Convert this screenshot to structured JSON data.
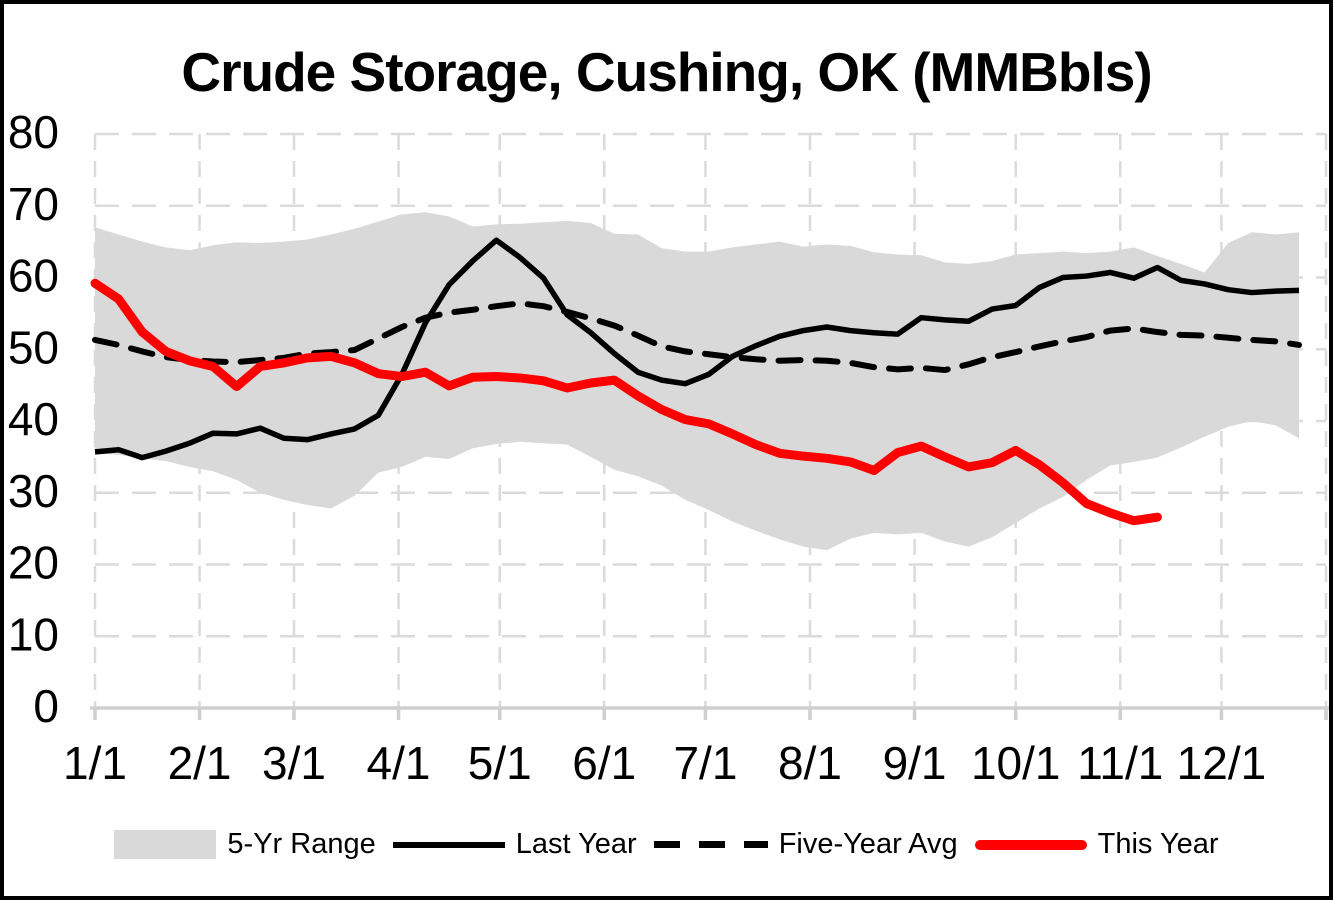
{
  "title": "Crude Storage, Cushing, OK (MMBbls)",
  "legend": [
    {
      "label": "5-Yr Range",
      "swatch": "band",
      "color": "#D9D9D9"
    },
    {
      "label": "Last Year",
      "swatch": "solid",
      "color": "#000000"
    },
    {
      "label": "Five-Year Avg",
      "swatch": "dashed",
      "color": "#000000"
    },
    {
      "label": "This Year",
      "swatch": "thick",
      "color": "#FF0000"
    }
  ],
  "chart_data": {
    "type": "line",
    "title": "Crude Storage, Cushing, OK (MMBbls)",
    "xlabel": "",
    "ylabel": "",
    "x_unit": "weekly points starting Jan 1",
    "week_interval_days": 7,
    "days_in_year": 365,
    "x_tick_labels": [
      "1/1",
      "2/1",
      "3/1",
      "4/1",
      "5/1",
      "6/1",
      "7/1",
      "8/1",
      "9/1",
      "10/1",
      "11/1",
      "12/1"
    ],
    "month_start_days": [
      0,
      31,
      59,
      90,
      120,
      151,
      181,
      212,
      243,
      273,
      304,
      334
    ],
    "y_ticks": [
      0,
      10,
      20,
      30,
      40,
      50,
      60,
      70,
      80
    ],
    "ylim": [
      0,
      80
    ],
    "grid": "dashed",
    "legend_position": "bottom",
    "band": {
      "name": "5-Yr Range",
      "color": "#D9D9D9",
      "max": [
        67.0,
        66.0,
        65.0,
        64.2,
        63.8,
        64.5,
        64.9,
        64.8,
        65.0,
        65.3,
        66.0,
        66.8,
        67.8,
        68.8,
        69.1,
        68.5,
        67.1,
        67.4,
        67.5,
        67.7,
        67.9,
        67.6,
        66.1,
        66.0,
        64.1,
        63.6,
        63.6,
        64.2,
        64.6,
        65.0,
        64.3,
        64.6,
        64.4,
        63.5,
        63.2,
        63.1,
        62.1,
        61.9,
        62.3,
        63.2,
        63.4,
        63.6,
        63.4,
        63.6,
        64.2,
        63.0,
        61.9,
        60.7,
        64.8,
        66.3,
        66.0,
        66.3
      ],
      "min": [
        35.5,
        35.3,
        34.8,
        34.4,
        33.6,
        33.0,
        31.8,
        30.0,
        29.0,
        28.3,
        27.8,
        29.6,
        32.8,
        33.6,
        35.0,
        34.7,
        36.2,
        36.8,
        37.1,
        36.9,
        36.7,
        35.0,
        33.2,
        32.3,
        31.0,
        29.0,
        27.6,
        26.0,
        24.7,
        23.5,
        22.5,
        22.0,
        23.6,
        24.4,
        24.2,
        24.4,
        23.2,
        22.5,
        23.8,
        25.8,
        27.8,
        29.4,
        31.8,
        33.8,
        34.3,
        34.9,
        36.3,
        37.8,
        39.2,
        40.0,
        39.4,
        37.6
      ]
    },
    "series": [
      {
        "name": "Last Year",
        "style": "solid",
        "color": "#000000",
        "values": [
          35.7,
          36.0,
          34.9,
          35.8,
          36.9,
          38.3,
          38.2,
          39.0,
          37.6,
          37.4,
          38.2,
          38.9,
          40.8,
          46.5,
          53.7,
          59.0,
          62.3,
          65.2,
          62.8,
          59.9,
          54.8,
          52.3,
          49.4,
          46.8,
          45.7,
          45.2,
          46.5,
          49.0,
          50.5,
          51.8,
          52.6,
          53.1,
          52.6,
          52.3,
          52.1,
          54.4,
          54.1,
          53.9,
          55.6,
          56.1,
          58.6,
          60.0,
          60.2,
          60.7,
          59.9,
          61.4,
          59.6,
          59.1,
          58.3,
          57.9,
          58.1,
          58.2
        ]
      },
      {
        "name": "Five-Year Avg",
        "style": "dashed",
        "color": "#000000",
        "values": [
          51.3,
          50.6,
          49.7,
          48.9,
          48.5,
          48.3,
          48.2,
          48.5,
          48.8,
          49.4,
          49.6,
          49.9,
          51.5,
          53.1,
          54.4,
          55.1,
          55.5,
          56.0,
          56.4,
          56.0,
          55.2,
          54.3,
          53.3,
          51.9,
          50.4,
          49.7,
          49.3,
          48.9,
          48.6,
          48.4,
          48.5,
          48.4,
          48.1,
          47.5,
          47.2,
          47.4,
          47.1,
          47.9,
          48.9,
          49.6,
          50.4,
          51.1,
          51.7,
          52.6,
          52.9,
          52.4,
          52.0,
          51.9,
          51.6,
          51.3,
          51.1,
          50.6
        ]
      },
      {
        "name": "This Year",
        "style": "solid-thick",
        "color": "#FF0000",
        "values": [
          59.2,
          57.0,
          52.4,
          49.7,
          48.4,
          47.6,
          44.8,
          47.6,
          48.1,
          48.8,
          49.0,
          48.1,
          46.6,
          46.2,
          46.8,
          44.9,
          46.1,
          46.2,
          46.0,
          45.6,
          44.6,
          45.3,
          45.7,
          43.5,
          41.6,
          40.2,
          39.6,
          38.2,
          36.7,
          35.5,
          35.1,
          34.8,
          34.3,
          33.1,
          35.6,
          36.5,
          35.0,
          33.6,
          34.2,
          35.9,
          33.9,
          31.4,
          28.5,
          27.2,
          26.1,
          26.6
        ]
      }
    ]
  }
}
